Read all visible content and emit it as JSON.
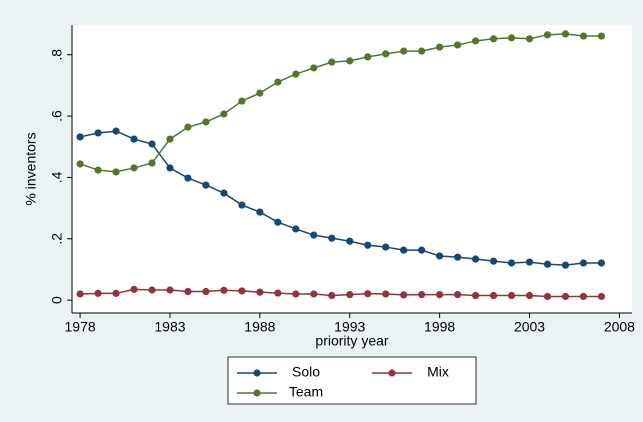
{
  "chart_data": {
    "type": "line",
    "x_label": "priority year",
    "y_label": "% inventors",
    "x": [
      1978,
      1979,
      1980,
      1981,
      1982,
      1983,
      1984,
      1985,
      1986,
      1987,
      1988,
      1989,
      1990,
      1991,
      1992,
      1993,
      1994,
      1995,
      1996,
      1997,
      1998,
      1999,
      2000,
      2001,
      2002,
      2003,
      2004,
      2005,
      2006,
      2007
    ],
    "series": [
      {
        "name": "Solo",
        "color": "#1a476f",
        "values": [
          0.532,
          0.545,
          0.551,
          0.525,
          0.509,
          0.431,
          0.398,
          0.375,
          0.349,
          0.31,
          0.287,
          0.254,
          0.232,
          0.212,
          0.202,
          0.192,
          0.179,
          0.173,
          0.163,
          0.163,
          0.144,
          0.14,
          0.134,
          0.127,
          0.121,
          0.124,
          0.117,
          0.114,
          0.121,
          0.121
        ]
      },
      {
        "name": "Mix",
        "color": "#90353b",
        "values": [
          0.02,
          0.022,
          0.022,
          0.035,
          0.033,
          0.033,
          0.028,
          0.028,
          0.032,
          0.03,
          0.026,
          0.023,
          0.02,
          0.02,
          0.015,
          0.018,
          0.021,
          0.02,
          0.017,
          0.018,
          0.018,
          0.018,
          0.015,
          0.015,
          0.015,
          0.015,
          0.012,
          0.012,
          0.012,
          0.012
        ]
      },
      {
        "name": "Team",
        "color": "#55752f",
        "values": [
          0.444,
          0.424,
          0.418,
          0.431,
          0.447,
          0.525,
          0.564,
          0.581,
          0.607,
          0.649,
          0.675,
          0.711,
          0.737,
          0.757,
          0.776,
          0.78,
          0.793,
          0.803,
          0.812,
          0.812,
          0.825,
          0.832,
          0.845,
          0.852,
          0.855,
          0.852,
          0.865,
          0.868,
          0.861,
          0.861
        ]
      }
    ],
    "xlim": [
      1977.55,
      2008.7
    ],
    "xticks": [
      1978,
      1983,
      1988,
      1993,
      1998,
      2003,
      2008
    ],
    "ylim": [
      -0.042,
      0.897
    ],
    "yticks": [
      0,
      {
        "value": 0.2,
        "label": ".2"
      },
      {
        "value": 0.4,
        "label": ".4"
      },
      {
        "value": 0.6,
        "label": ".6"
      },
      {
        "value": 0.8,
        "label": ".8"
      }
    ],
    "legend": "bottom"
  }
}
